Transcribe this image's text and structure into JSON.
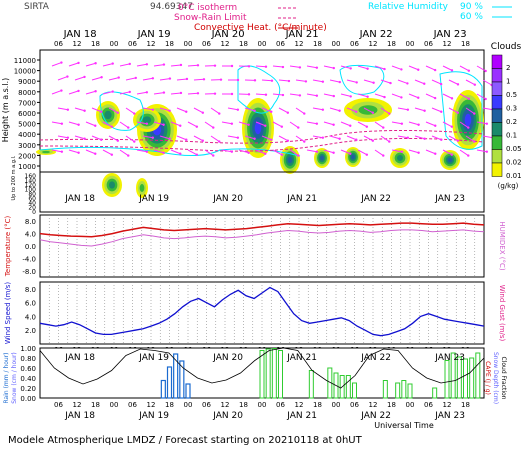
{
  "header": {
    "station": "SIRTA",
    "code": "94.69347",
    "legend_isotherm": "0°C isotherm",
    "legend_snowrain": "Snow-Rain Limit",
    "legend_convective": "Convective Heat. (°C/minute)",
    "legend_rh": "Relative Humidity",
    "rh_90": "90 %",
    "rh_60": "60 %"
  },
  "footer": "Modele Atmospherique LMDZ / Forecast starting on 20210118 at 0hUT",
  "xaxis_title": "Universal Time",
  "colors": {
    "rh": "#00e5ff",
    "isotherm": "#e0208a",
    "convective": "#d10000",
    "wind": "#1010d0",
    "temperature": "#d41010",
    "humidex": "#d060d0",
    "rain": "#1a6ad0",
    "snow": "#6060ff",
    "cape": "#30cc30",
    "arrow": "#ff30ff"
  },
  "days": [
    "JAN 18",
    "JAN 19",
    "JAN 20",
    "JAN 21",
    "JAN 22",
    "JAN 23"
  ],
  "hour_ticks": [
    "06",
    "12",
    "18",
    "00"
  ],
  "chart_data": [
    {
      "type": "heatmap",
      "title": "Clouds",
      "ylabel": "Height (m a.s.l.)",
      "ylabel_low": "Up to 200 m a.g.l.",
      "y_ticks": [
        "11000",
        "10000",
        "9000",
        "8000",
        "7000",
        "6000",
        "5000",
        "4000",
        "3000",
        "2000",
        "1000",
        "160",
        "140",
        "120",
        "100",
        "80",
        "60",
        "40",
        "20",
        "0"
      ],
      "colorbar_label": "(g/kg)",
      "colorbar": [
        {
          "label": "2",
          "color": "#b000ff"
        },
        {
          "label": "1",
          "color": "#9a30ff"
        },
        {
          "label": "0.5",
          "color": "#8c5aff"
        },
        {
          "label": "0.3",
          "color": "#3a3aff"
        },
        {
          "label": "0.2",
          "color": "#2060a0"
        },
        {
          "label": "0.1",
          "color": "#1a8a6a"
        },
        {
          "label": "0.05",
          "color": "#38b838"
        },
        {
          "label": "0.02",
          "color": "#b0e040"
        },
        {
          "label": "0.01",
          "color": "#f2f200"
        }
      ]
    },
    {
      "type": "line",
      "ylabel": "Temperature (°C)",
      "ylabel_right": "HUMIDEX (°C)",
      "y_ticks": [
        "8.0",
        "4.0",
        "0.0",
        "-4.0",
        "-8.0"
      ],
      "ylim": [
        -10,
        10
      ],
      "series": [
        {
          "name": "Temperature",
          "values": [
            4.0,
            3.6,
            3.4,
            3.2,
            3.1,
            3.0,
            3.4,
            4.0,
            4.8,
            5.4,
            6.0,
            5.6,
            5.2,
            5.0,
            5.2,
            5.4,
            5.6,
            5.4,
            5.2,
            5.4,
            5.6,
            6.0,
            6.4,
            6.8,
            7.2,
            7.0,
            6.8,
            6.6,
            6.8,
            7.0,
            7.2,
            7.0,
            6.8,
            7.0,
            7.2,
            7.4,
            7.4,
            7.2,
            7.0,
            7.0,
            7.2,
            7.4,
            7.0,
            6.8
          ]
        },
        {
          "name": "Humidex",
          "values": [
            2.0,
            1.4,
            1.0,
            0.6,
            0.2,
            0.0,
            0.6,
            1.4,
            2.4,
            3.0,
            3.6,
            3.2,
            2.6,
            2.4,
            2.6,
            3.0,
            3.2,
            3.0,
            2.6,
            2.8,
            3.2,
            3.6,
            4.2,
            4.6,
            5.0,
            4.8,
            4.4,
            4.2,
            4.4,
            4.8,
            5.0,
            4.8,
            4.4,
            4.6,
            5.0,
            5.2,
            5.2,
            5.0,
            4.6,
            4.8,
            5.0,
            5.2,
            4.8,
            4.6
          ]
        }
      ]
    },
    {
      "type": "line",
      "ylabel": "Wind Speed (m/s)",
      "ylabel_right": "Wind Gust (m/s)",
      "y_ticks": [
        "8.0",
        "6.0",
        "4.0",
        "2.0"
      ],
      "ylim": [
        0,
        9
      ],
      "series": [
        {
          "name": "Wind Speed",
          "values": [
            3.0,
            2.8,
            2.6,
            2.8,
            3.2,
            2.8,
            2.2,
            1.6,
            1.4,
            1.4,
            1.6,
            1.8,
            2.0,
            2.2,
            2.6,
            3.0,
            3.6,
            4.4,
            5.4,
            6.2,
            6.6,
            6.0,
            5.4,
            6.4,
            7.2,
            7.8,
            7.0,
            6.6,
            7.4,
            8.2,
            7.6,
            6.0,
            4.4,
            3.4,
            3.0,
            3.2,
            3.4,
            3.6,
            3.8,
            3.4,
            2.6,
            2.0,
            1.4,
            1.2,
            1.4,
            1.8,
            2.2,
            3.0,
            4.0,
            4.4,
            4.0,
            3.6,
            3.4,
            3.2,
            3.0,
            2.8,
            2.6
          ]
        }
      ]
    },
    {
      "type": "bar",
      "ylabel": "Rain (mm/hour) Snow (cm/hour)",
      "ylabel_right": "CAPE (J/g) Snow Depth (cm) Cloud Fraction",
      "y_ticks": [
        "1.00",
        "0.80",
        "0.60",
        "0.40",
        "0.20",
        "0.00"
      ],
      "ylim": [
        0,
        1
      ],
      "series": [
        {
          "name": "Rain",
          "x_hours": [
            40,
            42,
            44,
            46,
            48
          ],
          "values": [
            0.35,
            0.62,
            0.88,
            0.74,
            0.28
          ]
        },
        {
          "name": "CAPE",
          "x_hours": [
            72,
            74,
            76,
            78,
            88,
            94,
            96,
            98,
            100,
            102,
            112,
            116,
            118,
            120,
            128,
            132,
            134,
            136,
            138,
            140,
            142
          ],
          "values": [
            0.95,
            0.98,
            0.99,
            0.95,
            0.55,
            0.6,
            0.5,
            0.45,
            0.45,
            0.3,
            0.35,
            0.3,
            0.35,
            0.28,
            0.2,
            0.75,
            0.9,
            0.82,
            0.78,
            0.8,
            0.9
          ]
        },
        {
          "name": "Cloud Fraction",
          "values": [
            0.95,
            0.6,
            0.4,
            0.28,
            0.38,
            0.55,
            0.85,
            0.98,
            0.95,
            0.9,
            0.6,
            0.4,
            0.3,
            0.36,
            0.5,
            0.75,
            0.95,
            1.0,
            0.95,
            0.55,
            0.35,
            0.2,
            0.45,
            0.85,
            0.98,
            0.95,
            0.6,
            0.4,
            0.3,
            0.35,
            0.5,
            0.8
          ]
        }
      ]
    }
  ]
}
